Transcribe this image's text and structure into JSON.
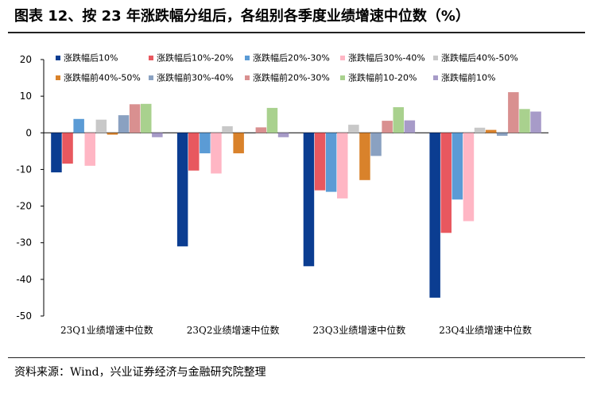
{
  "header": {
    "title": "图表 12、按 23 年涨跌幅分组后，各组别各季度业绩增速中位数（%）"
  },
  "footer": {
    "source": "资料来源：Wind，兴业证券经济与金融研究院整理"
  },
  "chart_data": {
    "type": "bar",
    "title": "",
    "xlabel": "",
    "ylabel": "",
    "ylim": [
      -50,
      20
    ],
    "yticks": [
      "20",
      "10",
      "0",
      "-10",
      "-20",
      "-30",
      "-40",
      "-50"
    ],
    "grid": false,
    "legend_position": "top",
    "categories": [
      "23Q1业绩增速中位数",
      "23Q2业绩增速中位数",
      "23Q3业绩增速中位数",
      "23Q4业绩增速中位数"
    ],
    "series": [
      {
        "name": "涨跌幅后10%",
        "color": "#0b3d91",
        "values": [
          -10.8,
          -31.0,
          -36.4,
          -45.0
        ]
      },
      {
        "name": "涨跌幅后10%-20%",
        "color": "#e8585f",
        "values": [
          -8.4,
          -10.3,
          -15.7,
          -27.3
        ]
      },
      {
        "name": "涨跌幅后20%-30%",
        "color": "#5b9bd5",
        "values": [
          3.8,
          -5.6,
          -16.1,
          -18.2
        ]
      },
      {
        "name": "涨跌幅后30%-40%",
        "color": "#ffb6c4",
        "values": [
          -9.0,
          -11.1,
          -17.9,
          -24.1
        ]
      },
      {
        "name": "涨跌幅后40%-50%",
        "color": "#c8c8c8",
        "values": [
          3.6,
          1.8,
          2.2,
          1.4
        ]
      },
      {
        "name": "涨跌幅前40%-50%",
        "color": "#d9822b",
        "values": [
          -0.5,
          -5.6,
          -12.9,
          0.8
        ]
      },
      {
        "name": "涨跌幅前30%-40%",
        "color": "#8aa1c1",
        "values": [
          4.8,
          0.0,
          -6.3,
          -0.8
        ]
      },
      {
        "name": "涨跌幅前20%-30%",
        "color": "#d99090",
        "values": [
          7.8,
          1.5,
          3.3,
          11.1
        ]
      },
      {
        "name": "涨跌幅前10-20%",
        "color": "#a9d18e",
        "values": [
          7.9,
          6.8,
          7.0,
          6.5
        ]
      },
      {
        "name": "涨跌幅前10%",
        "color": "#a79bc8",
        "values": [
          -1.2,
          -1.2,
          3.4,
          5.8
        ]
      }
    ]
  }
}
